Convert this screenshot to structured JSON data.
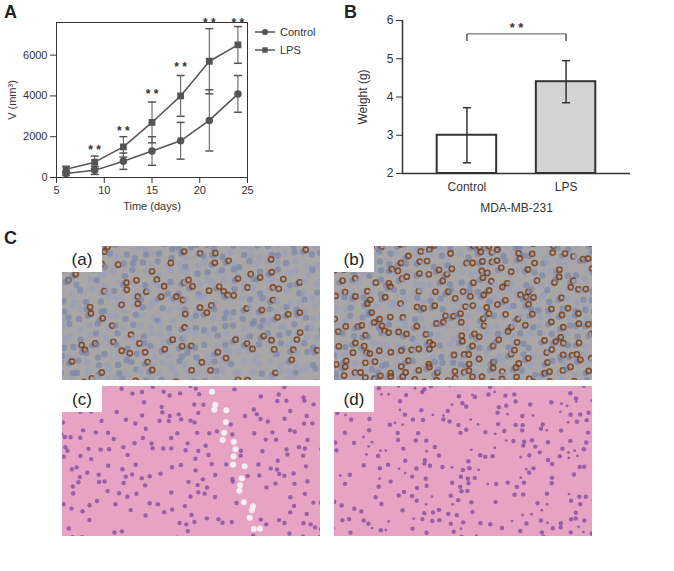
{
  "chart_data": [
    {
      "type": "line",
      "title": "A",
      "x_label": "Time (days)",
      "y_label": "V (mm³)",
      "x": [
        6,
        9,
        12,
        15,
        18,
        21,
        24
      ],
      "series": [
        {
          "name": "Control",
          "color": "#555555",
          "marker": "circle",
          "values": [
            200,
            350,
            800,
            1300,
            1800,
            2800,
            4100
          ],
          "errors": [
            100,
            200,
            400,
            700,
            900,
            1500,
            900
          ]
        },
        {
          "name": "LPS",
          "color": "#555555",
          "marker": "square",
          "values": [
            400,
            750,
            1500,
            2700,
            4000,
            5700,
            6500
          ],
          "errors": [
            150,
            300,
            500,
            1000,
            1000,
            1600,
            900
          ]
        }
      ],
      "xlim": [
        5,
        25
      ],
      "xticks": [
        5,
        10,
        15,
        20,
        25
      ],
      "ylim": [
        0,
        7600
      ],
      "yticks": [
        0,
        2000,
        4000,
        6000
      ],
      "legend": "top-right",
      "annotations": [
        {
          "x": 9,
          "y": 1150,
          "text": "* *"
        },
        {
          "x": 12,
          "y": 2100,
          "text": "* *"
        },
        {
          "x": 15,
          "y": 3900,
          "text": "* *"
        },
        {
          "x": 18,
          "y": 5200,
          "text": "* *"
        },
        {
          "x": 21,
          "y": 7400,
          "text": "* *"
        },
        {
          "x": 24,
          "y": 7400,
          "text": "* *"
        }
      ]
    },
    {
      "type": "bar",
      "title": "B",
      "x_label": "MDA-MB-231",
      "y_label": "Weight (g)",
      "categories": [
        "Control",
        "LPS"
      ],
      "values": [
        3.0,
        4.4
      ],
      "errors": [
        0.72,
        0.55
      ],
      "colors": [
        "#ffffff",
        "#d3d3d3"
      ],
      "ylim": [
        2,
        6
      ],
      "yticks": [
        2,
        3,
        4,
        5,
        6
      ],
      "annotations": [
        {
          "from": "Control",
          "to": "LPS",
          "y": 5.65,
          "text": "* *"
        }
      ]
    }
  ],
  "images": {
    "title": "C",
    "labels": [
      "(a)",
      "(b)",
      "(c)",
      "(d)"
    ]
  }
}
